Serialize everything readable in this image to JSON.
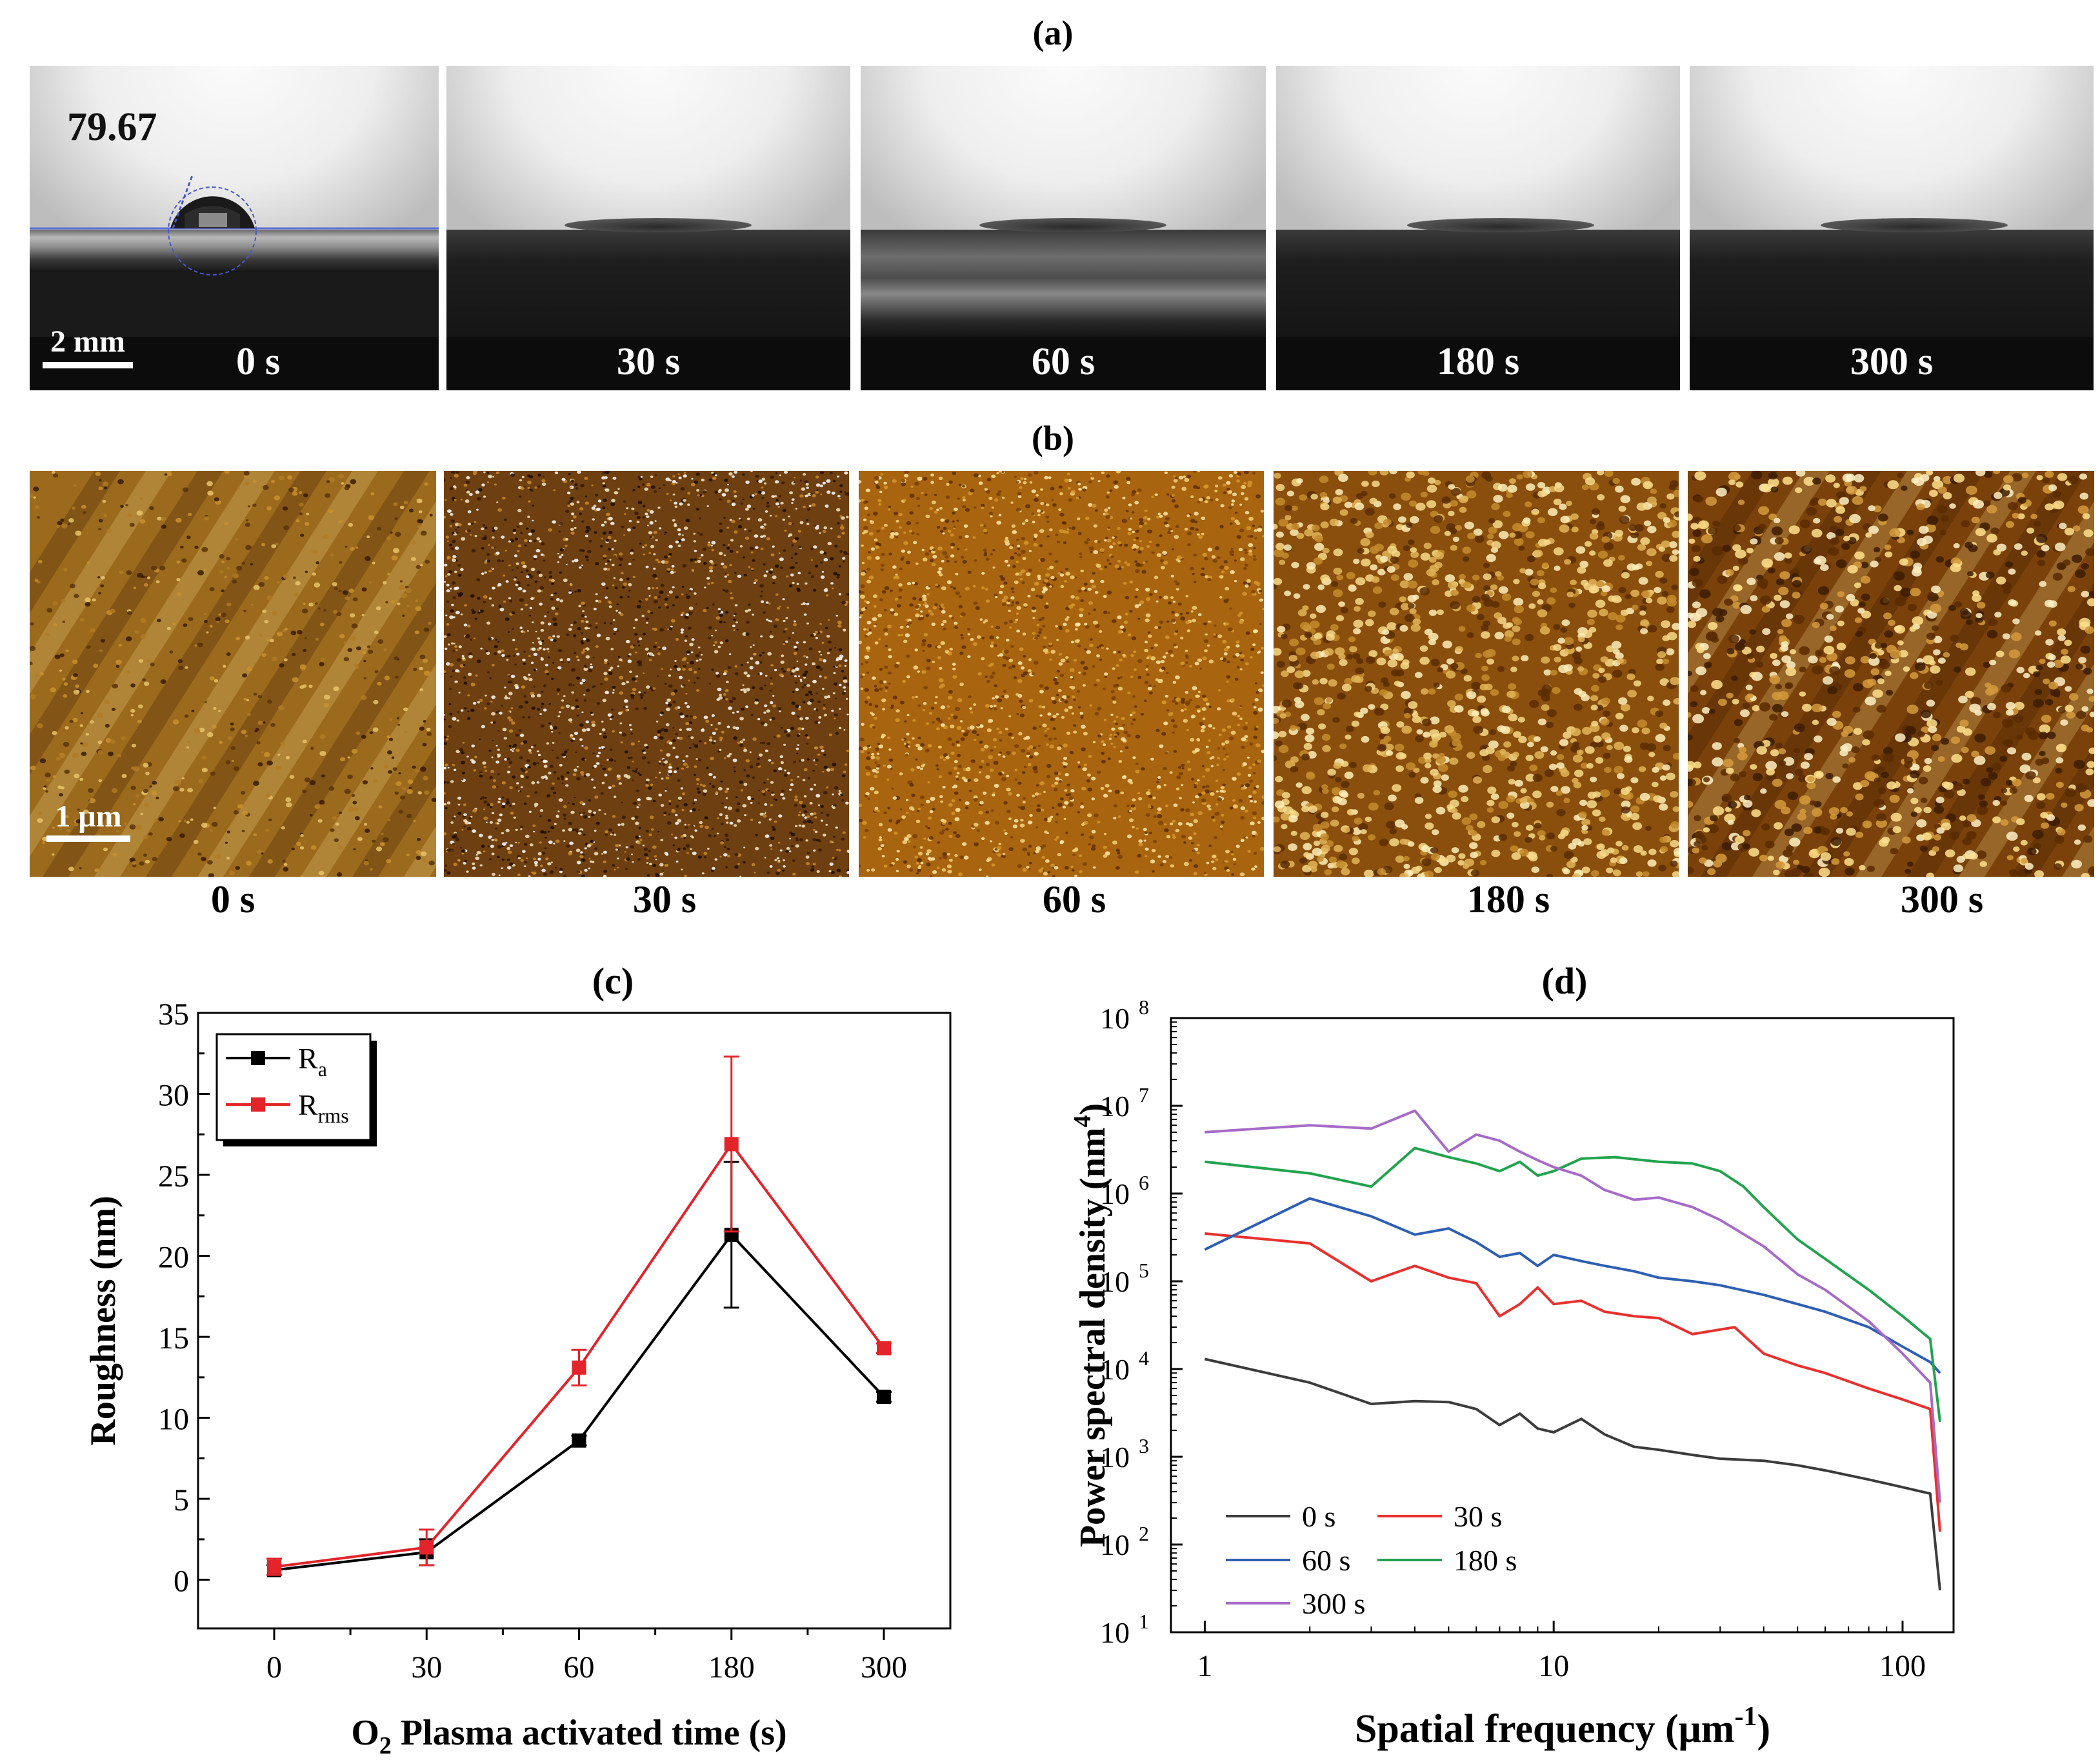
{
  "panel_a": {
    "label": "(a)",
    "contact_angle": "79.67",
    "scale_bar": "2 mm",
    "images": [
      {
        "time": "0 s"
      },
      {
        "time": "30 s"
      },
      {
        "time": "60 s"
      },
      {
        "time": "180 s"
      },
      {
        "time": "300 s"
      }
    ]
  },
  "panel_b": {
    "label": "(b)",
    "scale_bar": "1 μm",
    "images": [
      {
        "time": "0 s"
      },
      {
        "time": "30 s"
      },
      {
        "time": "60 s"
      },
      {
        "time": "180 s"
      },
      {
        "time": "300 s"
      }
    ]
  },
  "colors": {
    "ra": "#000000",
    "rrms": "#e3242b",
    "psd_0s": "#3c3c3c",
    "psd_30s": "#e8312f",
    "psd_60s": "#2f5fb3",
    "psd_180s": "#22a34f",
    "psd_300s": "#a66bc9",
    "afm_dark": "#3a1b00",
    "afm_mid": "#a0620f",
    "afm_light": "#ffeaa0"
  },
  "chart_data": [
    {
      "id": "c",
      "label": "(c)",
      "type": "line",
      "xlabel_main": "O",
      "xlabel_sub": "2",
      "xlabel_rest": " Plasma activated time (s)",
      "ylabel": "Roughness (nm)",
      "categories": [
        "0",
        "30",
        "60",
        "180",
        "300"
      ],
      "ylim": [
        -3,
        35
      ],
      "yticks": [
        0,
        5,
        10,
        15,
        20,
        25,
        30,
        35
      ],
      "legend_position": "top-left",
      "series": [
        {
          "name": "R",
          "sub": "a",
          "values": [
            0.6,
            1.7,
            8.6,
            21.3,
            11.3
          ],
          "errors": [
            0.3,
            0.8,
            0.3,
            4.5,
            0.3
          ]
        },
        {
          "name": "R",
          "sub": "rms",
          "values": [
            0.8,
            2.0,
            13.1,
            26.9,
            14.3
          ],
          "errors": [
            0.5,
            1.1,
            1.1,
            5.4,
            0.3
          ]
        }
      ]
    },
    {
      "id": "d",
      "label": "(d)",
      "type": "line",
      "xscale": "log",
      "yscale": "log",
      "xlabel": "Spatial frequency (μm",
      "xlabel_sup": "-1",
      "xlabel_end": ")",
      "ylabel": "Power spectral density (nm",
      "ylabel_sup": "4",
      "ylabel_end": ")",
      "xlim": [
        0.8,
        140
      ],
      "ylim": [
        10,
        100000000
      ],
      "xticks": [
        1,
        10,
        100
      ],
      "xtick_labels": [
        "1",
        "10",
        "100"
      ],
      "yticks_exp": [
        1,
        2,
        3,
        4,
        5,
        6,
        7,
        8
      ],
      "ytick_base": "10",
      "legend_position": "bottom-left",
      "series": [
        {
          "name": "0 s",
          "points": [
            [
              1,
              13000
            ],
            [
              2,
              7000
            ],
            [
              3,
              4000
            ],
            [
              4,
              4300
            ],
            [
              5,
              4200
            ],
            [
              6,
              3500
            ],
            [
              7,
              2300
            ],
            [
              8,
              3100
            ],
            [
              9,
              2100
            ],
            [
              10,
              1900
            ],
            [
              12,
              2700
            ],
            [
              14,
              1800
            ],
            [
              17,
              1300
            ],
            [
              20,
              1200
            ],
            [
              25,
              1050
            ],
            [
              30,
              950
            ],
            [
              40,
              900
            ],
            [
              50,
              800
            ],
            [
              60,
              700
            ],
            [
              80,
              550
            ],
            [
              100,
              450
            ],
            [
              120,
              380
            ],
            [
              128,
              30
            ]
          ]
        },
        {
          "name": "30 s",
          "points": [
            [
              1,
              350000
            ],
            [
              2,
              270000
            ],
            [
              3,
              100000
            ],
            [
              4,
              150000
            ],
            [
              5,
              110000
            ],
            [
              6,
              95000
            ],
            [
              7,
              40000
            ],
            [
              8,
              55000
            ],
            [
              9,
              85000
            ],
            [
              10,
              55000
            ],
            [
              12,
              60000
            ],
            [
              14,
              45000
            ],
            [
              17,
              40000
            ],
            [
              20,
              38000
            ],
            [
              25,
              25000
            ],
            [
              33,
              30000
            ],
            [
              40,
              15000
            ],
            [
              50,
              11000
            ],
            [
              60,
              9000
            ],
            [
              80,
              6000
            ],
            [
              100,
              4500
            ],
            [
              120,
              3500
            ],
            [
              128,
              140
            ]
          ]
        },
        {
          "name": "60 s",
          "points": [
            [
              1,
              230000
            ],
            [
              2,
              880000
            ],
            [
              3,
              550000
            ],
            [
              4,
              340000
            ],
            [
              5,
              400000
            ],
            [
              6,
              280000
            ],
            [
              7,
              190000
            ],
            [
              8,
              210000
            ],
            [
              9,
              150000
            ],
            [
              10,
              200000
            ],
            [
              12,
              170000
            ],
            [
              14,
              150000
            ],
            [
              17,
              130000
            ],
            [
              20,
              110000
            ],
            [
              25,
              100000
            ],
            [
              30,
              90000
            ],
            [
              40,
              70000
            ],
            [
              50,
              55000
            ],
            [
              60,
              45000
            ],
            [
              80,
              30000
            ],
            [
              100,
              18000
            ],
            [
              120,
              12000
            ],
            [
              128,
              9000
            ]
          ]
        },
        {
          "name": "180 s",
          "points": [
            [
              1,
              2300000
            ],
            [
              2,
              1700000
            ],
            [
              3,
              1200000
            ],
            [
              4,
              3300000
            ],
            [
              5,
              2600000
            ],
            [
              6,
              2200000
            ],
            [
              7,
              1800000
            ],
            [
              8,
              2300000
            ],
            [
              9,
              1600000
            ],
            [
              10,
              1800000
            ],
            [
              12,
              2500000
            ],
            [
              15,
              2600000
            ],
            [
              20,
              2300000
            ],
            [
              25,
              2200000
            ],
            [
              30,
              1800000
            ],
            [
              35,
              1200000
            ],
            [
              40,
              700000
            ],
            [
              50,
              300000
            ],
            [
              60,
              180000
            ],
            [
              80,
              80000
            ],
            [
              100,
              40000
            ],
            [
              120,
              22000
            ],
            [
              128,
              2500
            ]
          ]
        },
        {
          "name": "300 s",
          "points": [
            [
              1,
              5000000
            ],
            [
              2,
              6000000
            ],
            [
              3,
              5500000
            ],
            [
              4,
              8800000
            ],
            [
              5,
              3000000
            ],
            [
              6,
              4700000
            ],
            [
              7,
              4000000
            ],
            [
              8,
              3000000
            ],
            [
              9,
              2400000
            ],
            [
              10,
              2000000
            ],
            [
              12,
              1600000
            ],
            [
              14,
              1100000
            ],
            [
              17,
              850000
            ],
            [
              20,
              900000
            ],
            [
              25,
              700000
            ],
            [
              30,
              500000
            ],
            [
              40,
              250000
            ],
            [
              50,
              120000
            ],
            [
              60,
              80000
            ],
            [
              80,
              35000
            ],
            [
              100,
              15000
            ],
            [
              120,
              7000
            ],
            [
              128,
              300
            ]
          ]
        }
      ]
    }
  ]
}
